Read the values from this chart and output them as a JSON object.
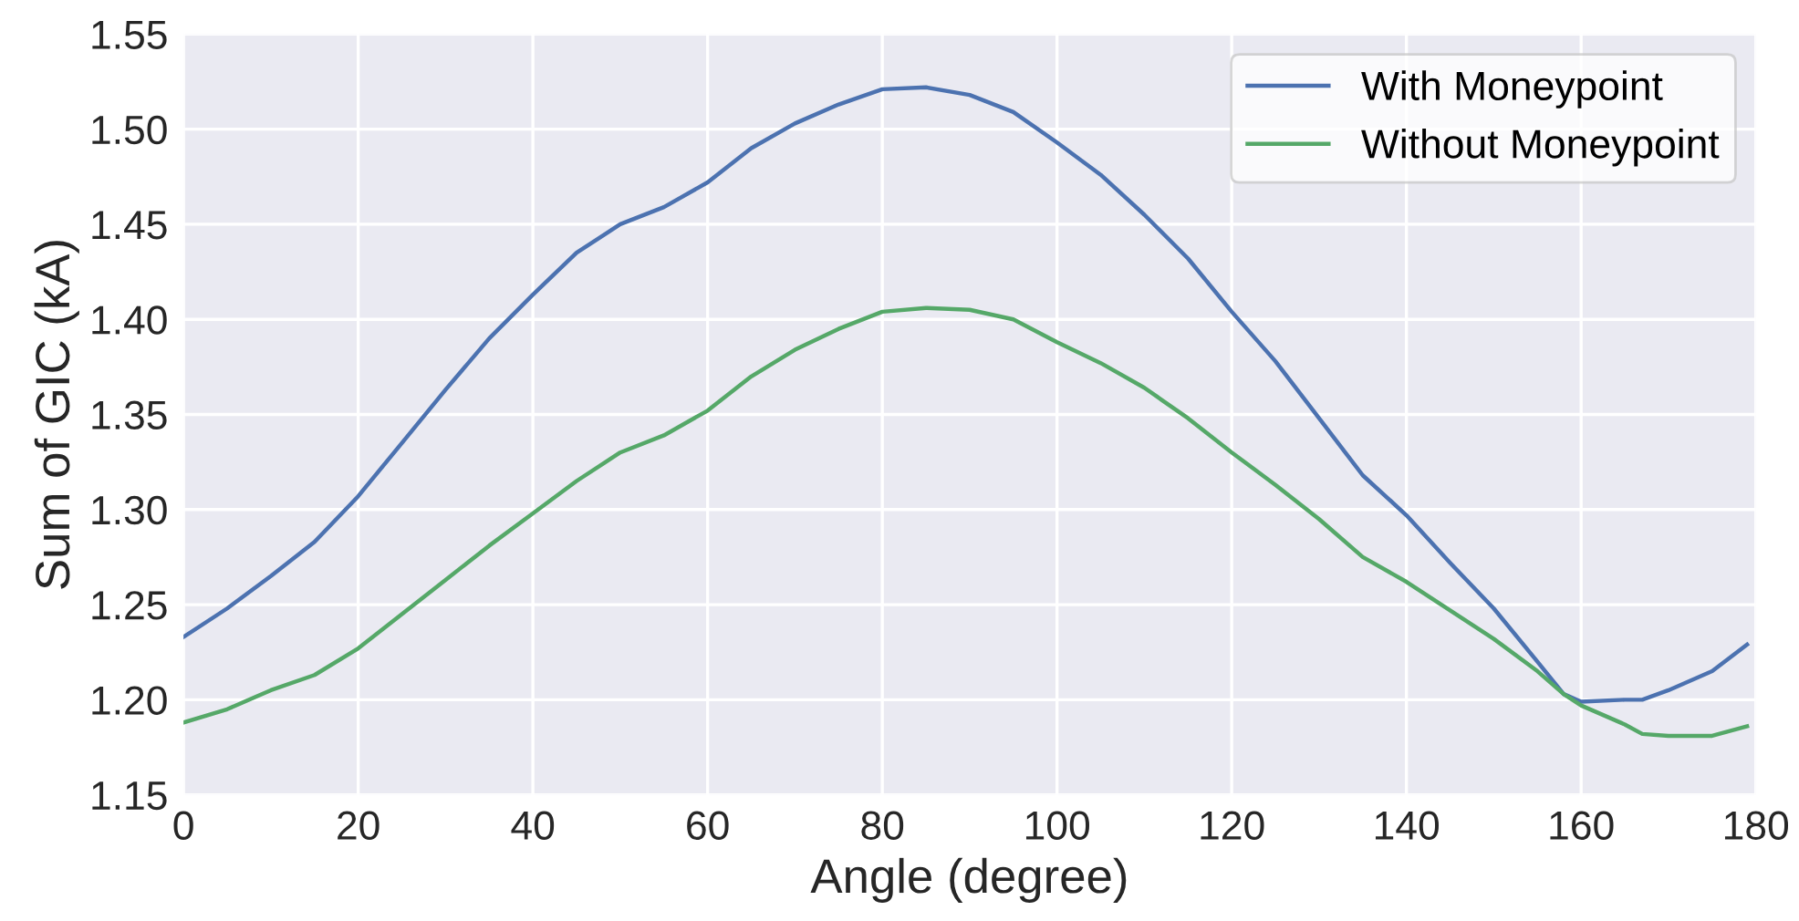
{
  "chart_data": {
    "type": "line",
    "xlabel": "Angle (degree)",
    "ylabel": "Sum of GIC (kA)",
    "xlim": [
      0,
      180
    ],
    "xticks": [
      0,
      20,
      40,
      60,
      80,
      100,
      120,
      140,
      160,
      180
    ],
    "ylim": [
      1.15,
      1.55
    ],
    "yticks": [
      {
        "value": 1.15,
        "label": "1.15"
      },
      {
        "value": 1.2,
        "label": "1.20"
      },
      {
        "value": 1.25,
        "label": "1.25"
      },
      {
        "value": 1.3,
        "label": "1.30"
      },
      {
        "value": 1.35,
        "label": "1.35"
      },
      {
        "value": 1.4,
        "label": "1.40"
      },
      {
        "value": 1.45,
        "label": "1.45"
      },
      {
        "value": 1.5,
        "label": "1.50"
      },
      {
        "value": 1.55,
        "label": "1.55"
      }
    ],
    "grid": true,
    "legend": "top right",
    "marker": "none",
    "line_style": "solid",
    "x": [
      0,
      5,
      10,
      15,
      20,
      25,
      30,
      35,
      40,
      45,
      50,
      55,
      60,
      65,
      70,
      75,
      80,
      85,
      90,
      95,
      100,
      105,
      110,
      115,
      120,
      125,
      130,
      135,
      140,
      145,
      150,
      155,
      158,
      160,
      165,
      167,
      170,
      175,
      179
    ],
    "series": [
      {
        "name": "With Moneypoint",
        "color": "#4c72b0",
        "values": [
          1.233,
          1.248,
          1.265,
          1.283,
          1.307,
          1.335,
          1.363,
          1.39,
          1.413,
          1.435,
          1.45,
          1.459,
          1.472,
          1.49,
          1.503,
          1.513,
          1.521,
          1.522,
          1.518,
          1.509,
          1.493,
          1.476,
          1.455,
          1.432,
          1.404,
          1.378,
          1.348,
          1.318,
          1.297,
          1.272,
          1.248,
          1.22,
          1.203,
          1.199,
          1.2,
          1.2,
          1.205,
          1.215,
          1.229
        ]
      },
      {
        "name": "Without Moneypoint",
        "color": "#55a868",
        "values": [
          1.188,
          1.195,
          1.205,
          1.213,
          1.227,
          1.245,
          1.263,
          1.281,
          1.298,
          1.315,
          1.33,
          1.339,
          1.352,
          1.37,
          1.384,
          1.395,
          1.404,
          1.406,
          1.405,
          1.4,
          1.388,
          1.377,
          1.364,
          1.348,
          1.33,
          1.313,
          1.295,
          1.275,
          1.262,
          1.247,
          1.232,
          1.215,
          1.203,
          1.197,
          1.187,
          1.182,
          1.181,
          1.181,
          1.186
        ]
      }
    ]
  }
}
